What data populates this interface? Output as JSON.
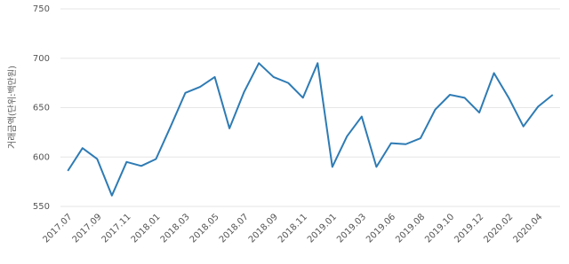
{
  "chart_data": {
    "type": "line",
    "y_label": "거래금액(단위:백만원)",
    "categories": [
      "2017.07",
      null,
      "2017.09",
      null,
      "2017.11",
      null,
      "2018.01",
      null,
      "2018.03",
      null,
      "2018.05",
      null,
      "2018.07",
      null,
      "2018.09",
      null,
      "2018.11",
      null,
      "2019.01",
      null,
      "2019.03",
      null,
      "2019.06",
      null,
      "2019.08",
      null,
      "2019.10",
      null,
      "2019.12",
      null,
      "2020.02",
      null,
      "2020.04",
      null
    ],
    "values": [
      586,
      609,
      598,
      561,
      595,
      591,
      598,
      631,
      665,
      671,
      681,
      629,
      666,
      695,
      681,
      675,
      660,
      695,
      590,
      621,
      641,
      590,
      614,
      613,
      619,
      648,
      663,
      660,
      645,
      685,
      660,
      631,
      651,
      663
    ],
    "color": "#2e7bb4",
    "ylim": [
      550,
      750
    ],
    "yticks": [
      550,
      600,
      650,
      700,
      750
    ],
    "grid": true
  }
}
